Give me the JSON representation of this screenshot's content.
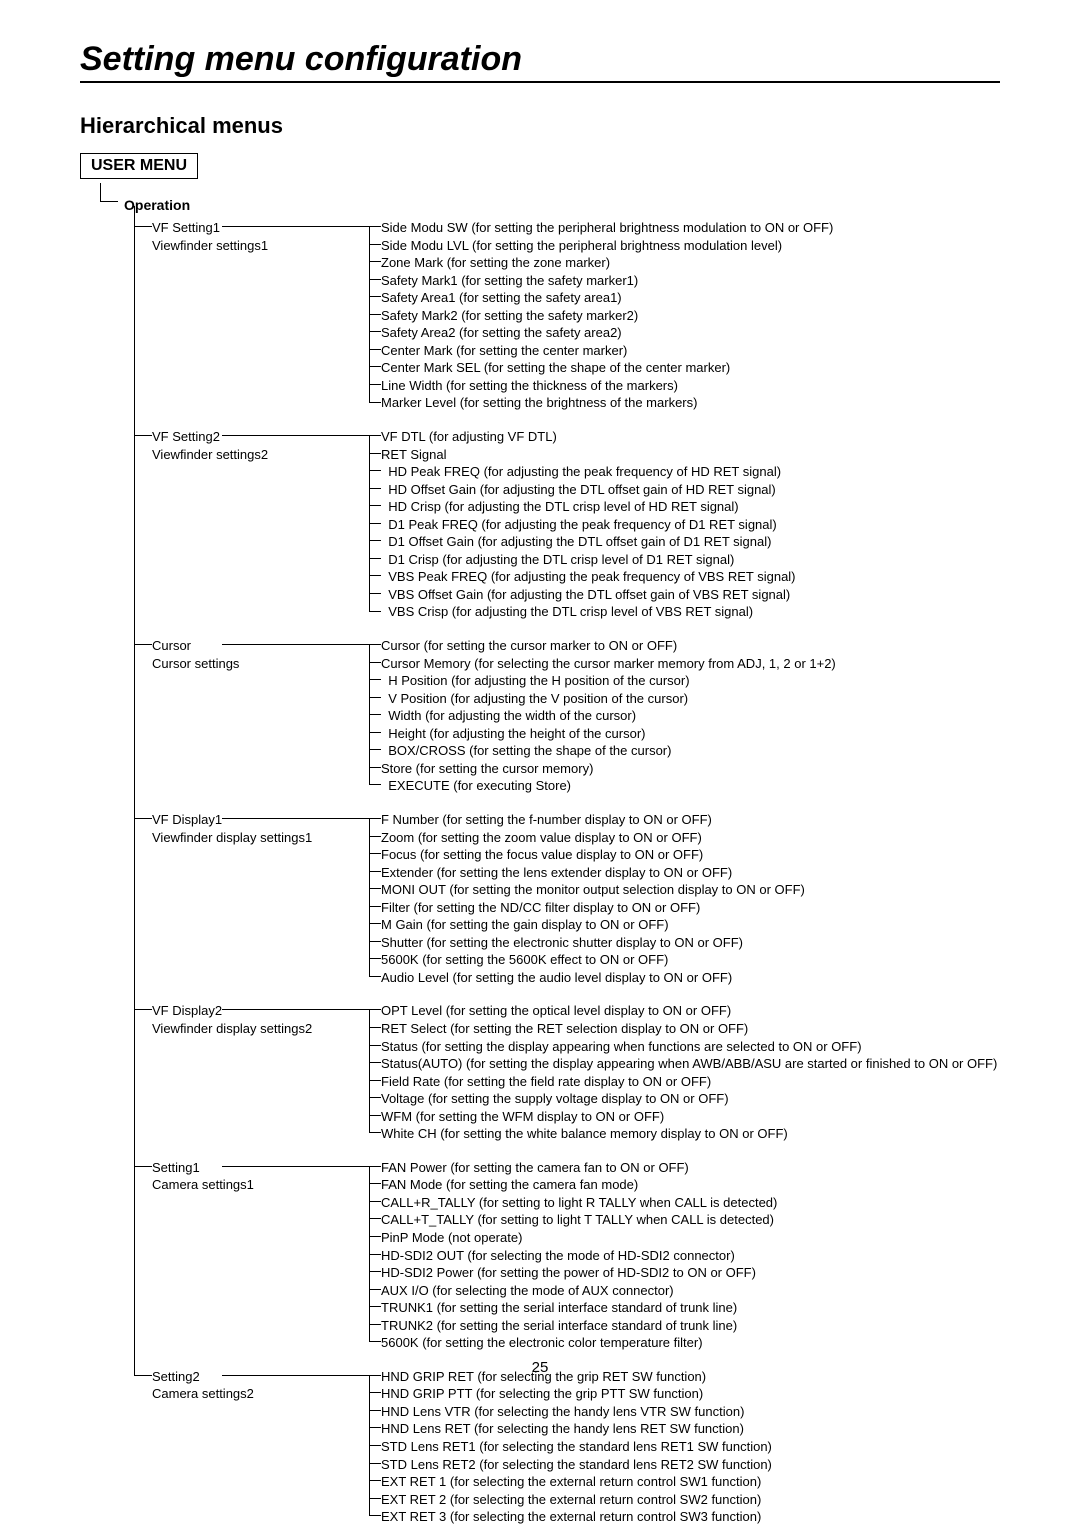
{
  "page_title": "Setting menu configuration",
  "section_title": "Hierarchical menus",
  "menu_box": "USER MENU",
  "operation_label": "Operation",
  "page_number": "25",
  "groups": [
    {
      "name": "VF Setting1",
      "desc": "Viewfinder settings1",
      "items": [
        "Side Modu SW (for setting the peripheral brightness modulation to ON or OFF)",
        "Side Modu LVL (for setting the peripheral brightness modulation level)",
        "Zone Mark (for setting the zone marker)",
        "Safety Mark1 (for setting the safety marker1)",
        "Safety Area1 (for setting the safety area1)",
        "Safety Mark2 (for setting the safety marker2)",
        "Safety Area2 (for setting the safety area2)",
        "Center Mark (for setting the center marker)",
        "Center Mark SEL (for setting the shape of the center marker)",
        "Line Width (for setting the thickness of the markers)",
        "Marker Level (for setting the brightness of the markers)"
      ]
    },
    {
      "name": "VF Setting2",
      "desc": "Viewfinder settings2",
      "items": [
        "VF DTL (for adjusting VF DTL)",
        "RET Signal",
        "  HD Peak FREQ (for adjusting the peak frequency of HD RET signal)",
        "  HD Offset Gain (for adjusting the DTL offset gain of HD RET signal)",
        "  HD Crisp (for adjusting the DTL crisp level of HD RET signal)",
        "  D1 Peak FREQ (for adjusting the peak frequency of D1 RET signal)",
        "  D1 Offset Gain (for adjusting the DTL offset gain of D1 RET signal)",
        "  D1 Crisp (for adjusting the DTL crisp level of D1 RET signal)",
        "  VBS Peak FREQ (for adjusting the peak frequency of VBS RET signal)",
        "  VBS Offset Gain (for adjusting the DTL offset gain of VBS RET signal)",
        "  VBS Crisp (for adjusting the DTL crisp level of VBS RET signal)"
      ]
    },
    {
      "name": "Cursor",
      "desc": "Cursor settings",
      "items": [
        "Cursor (for setting the cursor marker to ON or OFF)",
        "Cursor Memory (for selecting the cursor marker memory from ADJ, 1, 2 or 1+2)",
        "  H Position (for adjusting the H position of the cursor)",
        "  V Position (for adjusting the V position of the cursor)",
        "  Width (for adjusting the width of the cursor)",
        "  Height (for adjusting the height of the cursor)",
        "  BOX/CROSS (for setting the shape of the cursor)",
        "Store (for setting the cursor memory)",
        "  EXECUTE (for executing Store)"
      ]
    },
    {
      "name": "VF Display1",
      "desc": "Viewfinder display settings1",
      "items": [
        "F Number (for setting the f-number display to ON or OFF)",
        "Zoom (for setting the zoom value display to ON or OFF)",
        "Focus (for setting the focus value display to ON or OFF)",
        "Extender (for setting the lens extender display to ON or OFF)",
        "MONI OUT (for setting the monitor output selection display to ON or OFF)",
        "Filter (for setting the ND/CC filter display to ON or OFF)",
        "M Gain (for setting the gain display to ON or OFF)",
        "Shutter (for setting the electronic shutter display to ON or OFF)",
        "5600K (for setting the 5600K effect to ON or OFF)",
        "Audio Level (for setting the audio level display to ON or OFF)"
      ]
    },
    {
      "name": "VF Display2",
      "desc": "Viewfinder display settings2",
      "items": [
        "OPT Level (for setting the optical level display to ON or OFF)",
        "RET Select (for setting the RET selection display to ON or OFF)",
        "Status (for setting the display appearing when functions are selected to ON or OFF)",
        "Status(AUTO) (for setting the display appearing when AWB/ABB/ASU are started or finished to ON or OFF)",
        "Field Rate (for setting the field rate display to ON or OFF)",
        "Voltage (for setting the supply voltage display to ON or OFF)",
        "WFM (for setting the WFM display to ON or OFF)",
        "White CH (for setting the white balance memory display to ON or OFF)"
      ]
    },
    {
      "name": "Setting1",
      "desc": "Camera settings1",
      "items": [
        "FAN Power (for setting the camera fan to ON or OFF)",
        "FAN Mode (for setting the camera fan mode)",
        "CALL+R_TALLY (for setting to light R TALLY when CALL is detected)",
        "CALL+T_TALLY (for setting to light T TALLY when CALL is detected)",
        "PinP Mode (not operate)",
        "HD-SDI2 OUT (for selecting the mode of HD-SDI2 connector)",
        "HD-SDI2 Power (for setting the power of HD-SDI2 to ON or OFF)",
        "AUX I/O (for selecting the mode of AUX connector)",
        "TRUNK1 (for setting the serial interface standard of trunk line)",
        "TRUNK2 (for setting the serial interface standard of trunk line)",
        "5600K (for setting the electronic color temperature filter)"
      ]
    },
    {
      "name": "Setting2",
      "desc": "Camera settings2",
      "items": [
        "HND GRIP RET (for selecting the grip RET SW function)",
        "HND GRIP PTT (for selecting the grip PTT SW function)",
        "HND Lens VTR (for selecting the handy lens VTR SW function)",
        "HND Lens RET (for selecting the handy lens RET SW function)",
        "STD Lens RET1 (for selecting the standard lens RET1 SW function)",
        "STD Lens RET2 (for selecting the standard lens RET2 SW function)",
        "EXT RET 1 (for selecting the external return control SW1 function)",
        "EXT RET 2 (for selecting the external return control SW2 function)",
        "EXT RET 3 (for selecting the external return control SW3 function)"
      ]
    }
  ]
}
